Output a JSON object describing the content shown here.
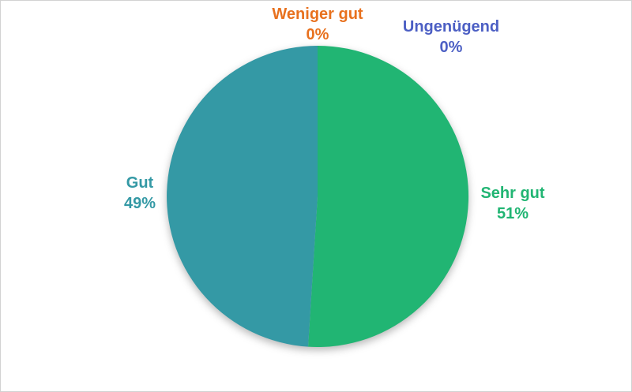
{
  "chart_data": {
    "type": "pie",
    "title": "",
    "categories": [
      "Sehr gut",
      "Gut",
      "Weniger gut",
      "Ungenügend"
    ],
    "values": [
      51,
      49,
      0,
      0
    ],
    "slices": [
      {
        "key": "sehr-gut",
        "label": "Sehr gut",
        "value": 51,
        "pct_label": "51%",
        "color": "#21B573"
      },
      {
        "key": "gut",
        "label": "Gut",
        "value": 49,
        "pct_label": "49%",
        "color": "#3499A5"
      },
      {
        "key": "weniger-gut",
        "label": "Weniger gut",
        "value": 0,
        "pct_label": "0%",
        "color": "#E8711E"
      },
      {
        "key": "ungenuegend",
        "label": "Ungenügend",
        "value": 0,
        "pct_label": "0%",
        "color": "#4C5FC4"
      }
    ],
    "start_angle_deg": 0,
    "direction": "clockwise",
    "legend_position": "none",
    "label_style": "outside-end, category name + percent, bold, colored to match slice"
  }
}
